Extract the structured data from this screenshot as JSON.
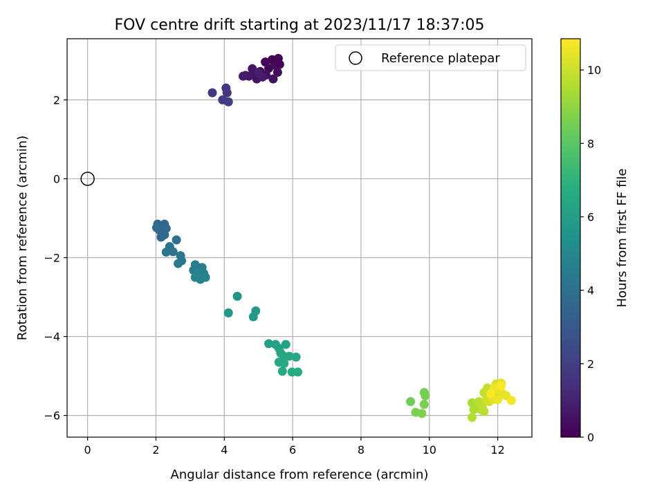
{
  "chart_data": {
    "type": "scatter",
    "title": "FOV centre drift starting at 2023/11/17 18:37:05",
    "xlabel": "Angular distance from reference (arcmin)",
    "ylabel": "Rotation from reference (arcmin)",
    "xlim": [
      -0.6,
      13.0
    ],
    "ylim": [
      -6.55,
      3.55
    ],
    "xticks": [
      0,
      2,
      4,
      6,
      8,
      10,
      12
    ],
    "yticks": [
      -6,
      -4,
      -2,
      0,
      2
    ],
    "grid": true,
    "legend": {
      "location": "top-right",
      "entries": [
        "Reference platepar"
      ]
    },
    "reference_point": {
      "x": 0,
      "y": 0
    },
    "colorbar": {
      "label": "Hours from first FF file",
      "range": [
        0,
        10.85
      ],
      "ticks": [
        0,
        2,
        4,
        6,
        8,
        10
      ],
      "colormap": "viridis"
    },
    "points": [
      {
        "x": 5.4,
        "y": 3.02,
        "t": 0.0
      },
      {
        "x": 5.58,
        "y": 3.05,
        "t": 0.05
      },
      {
        "x": 5.2,
        "y": 2.96,
        "t": 0.1
      },
      {
        "x": 5.62,
        "y": 2.9,
        "t": 0.15
      },
      {
        "x": 5.47,
        "y": 2.88,
        "t": 0.2
      },
      {
        "x": 5.3,
        "y": 2.8,
        "t": 0.25
      },
      {
        "x": 5.05,
        "y": 2.72,
        "t": 0.3
      },
      {
        "x": 5.56,
        "y": 2.7,
        "t": 0.35
      },
      {
        "x": 5.22,
        "y": 2.63,
        "t": 0.4
      },
      {
        "x": 5.43,
        "y": 2.53,
        "t": 0.45
      },
      {
        "x": 4.88,
        "y": 2.65,
        "t": 0.5
      },
      {
        "x": 4.95,
        "y": 2.53,
        "t": 0.55
      },
      {
        "x": 4.82,
        "y": 2.79,
        "t": 0.6
      },
      {
        "x": 4.72,
        "y": 2.6,
        "t": 0.65
      },
      {
        "x": 4.62,
        "y": 2.62,
        "t": 0.7
      },
      {
        "x": 5.12,
        "y": 2.58,
        "t": 0.75
      },
      {
        "x": 4.55,
        "y": 2.6,
        "t": 0.8
      },
      {
        "x": 5.0,
        "y": 2.67,
        "t": 0.85
      },
      {
        "x": 4.05,
        "y": 2.3,
        "t": 1.6
      },
      {
        "x": 4.08,
        "y": 2.18,
        "t": 1.7
      },
      {
        "x": 3.65,
        "y": 2.18,
        "t": 1.8
      },
      {
        "x": 3.95,
        "y": 2.0,
        "t": 1.9
      },
      {
        "x": 4.12,
        "y": 1.95,
        "t": 2.0
      },
      {
        "x": 2.05,
        "y": -1.15,
        "t": 3.5
      },
      {
        "x": 2.25,
        "y": -1.15,
        "t": 3.55
      },
      {
        "x": 2.1,
        "y": -1.3,
        "t": 3.6
      },
      {
        "x": 2.3,
        "y": -1.26,
        "t": 3.65
      },
      {
        "x": 2.15,
        "y": -1.48,
        "t": 3.7
      },
      {
        "x": 2.25,
        "y": -1.42,
        "t": 3.75
      },
      {
        "x": 2.02,
        "y": -1.24,
        "t": 3.8
      },
      {
        "x": 2.6,
        "y": -1.55,
        "t": 4.0
      },
      {
        "x": 2.4,
        "y": -1.72,
        "t": 4.05
      },
      {
        "x": 2.5,
        "y": -1.85,
        "t": 4.1
      },
      {
        "x": 2.3,
        "y": -1.86,
        "t": 4.15
      },
      {
        "x": 2.72,
        "y": -1.95,
        "t": 4.2
      },
      {
        "x": 2.75,
        "y": -2.08,
        "t": 4.25
      },
      {
        "x": 2.65,
        "y": -2.15,
        "t": 4.3
      },
      {
        "x": 3.15,
        "y": -2.18,
        "t": 4.5
      },
      {
        "x": 3.35,
        "y": -2.25,
        "t": 4.55
      },
      {
        "x": 3.1,
        "y": -2.32,
        "t": 4.6
      },
      {
        "x": 3.25,
        "y": -2.38,
        "t": 4.65
      },
      {
        "x": 3.4,
        "y": -2.4,
        "t": 4.7
      },
      {
        "x": 3.15,
        "y": -2.5,
        "t": 4.75
      },
      {
        "x": 3.3,
        "y": -2.55,
        "t": 4.8
      },
      {
        "x": 3.45,
        "y": -2.5,
        "t": 4.85
      },
      {
        "x": 3.2,
        "y": -2.45,
        "t": 4.9
      },
      {
        "x": 4.38,
        "y": -2.98,
        "t": 5.6
      },
      {
        "x": 4.12,
        "y": -3.4,
        "t": 5.7
      },
      {
        "x": 4.92,
        "y": -3.35,
        "t": 5.8
      },
      {
        "x": 4.85,
        "y": -3.5,
        "t": 5.85
      },
      {
        "x": 5.3,
        "y": -4.18,
        "t": 6.1
      },
      {
        "x": 5.5,
        "y": -4.2,
        "t": 6.15
      },
      {
        "x": 5.6,
        "y": -4.3,
        "t": 6.2
      },
      {
        "x": 5.8,
        "y": -4.2,
        "t": 6.25
      },
      {
        "x": 5.65,
        "y": -4.42,
        "t": 6.3
      },
      {
        "x": 5.75,
        "y": -4.5,
        "t": 6.35
      },
      {
        "x": 5.9,
        "y": -4.5,
        "t": 6.4
      },
      {
        "x": 6.1,
        "y": -4.52,
        "t": 6.45
      },
      {
        "x": 5.6,
        "y": -4.65,
        "t": 6.5
      },
      {
        "x": 5.75,
        "y": -4.68,
        "t": 6.55
      },
      {
        "x": 5.7,
        "y": -4.88,
        "t": 6.6
      },
      {
        "x": 5.98,
        "y": -4.9,
        "t": 6.65
      },
      {
        "x": 6.15,
        "y": -4.9,
        "t": 6.7
      },
      {
        "x": 9.45,
        "y": -5.65,
        "t": 8.4
      },
      {
        "x": 9.85,
        "y": -5.42,
        "t": 8.5
      },
      {
        "x": 9.88,
        "y": -5.5,
        "t": 8.55
      },
      {
        "x": 9.85,
        "y": -5.72,
        "t": 8.6
      },
      {
        "x": 9.6,
        "y": -5.92,
        "t": 8.65
      },
      {
        "x": 9.78,
        "y": -5.95,
        "t": 8.7
      },
      {
        "x": 11.25,
        "y": -5.68,
        "t": 9.4
      },
      {
        "x": 11.4,
        "y": -5.72,
        "t": 9.45
      },
      {
        "x": 11.3,
        "y": -5.85,
        "t": 9.5
      },
      {
        "x": 11.5,
        "y": -5.85,
        "t": 9.55
      },
      {
        "x": 11.25,
        "y": -6.05,
        "t": 9.6
      },
      {
        "x": 11.6,
        "y": -5.9,
        "t": 9.65
      },
      {
        "x": 11.45,
        "y": -5.65,
        "t": 9.7
      },
      {
        "x": 11.55,
        "y": -5.8,
        "t": 9.75
      },
      {
        "x": 11.6,
        "y": -5.42,
        "t": 9.85
      },
      {
        "x": 11.7,
        "y": -5.3,
        "t": 9.9
      },
      {
        "x": 11.8,
        "y": -5.5,
        "t": 9.95
      },
      {
        "x": 11.65,
        "y": -5.62,
        "t": 10.0
      },
      {
        "x": 11.9,
        "y": -5.4,
        "t": 10.05
      },
      {
        "x": 12.0,
        "y": -5.55,
        "t": 10.1
      },
      {
        "x": 11.75,
        "y": -5.65,
        "t": 10.15
      },
      {
        "x": 11.95,
        "y": -5.2,
        "t": 10.2
      },
      {
        "x": 12.1,
        "y": -5.18,
        "t": 10.3
      },
      {
        "x": 12.05,
        "y": -5.38,
        "t": 10.35
      },
      {
        "x": 11.85,
        "y": -5.6,
        "t": 10.4
      },
      {
        "x": 12.15,
        "y": -5.45,
        "t": 10.45
      },
      {
        "x": 12.25,
        "y": -5.5,
        "t": 10.5
      },
      {
        "x": 12.0,
        "y": -5.6,
        "t": 10.55
      },
      {
        "x": 11.9,
        "y": -5.3,
        "t": 10.6
      },
      {
        "x": 12.4,
        "y": -5.62,
        "t": 10.7
      },
      {
        "x": 12.1,
        "y": -5.25,
        "t": 10.8
      },
      {
        "x": 11.8,
        "y": -5.45,
        "t": 10.85
      }
    ]
  }
}
